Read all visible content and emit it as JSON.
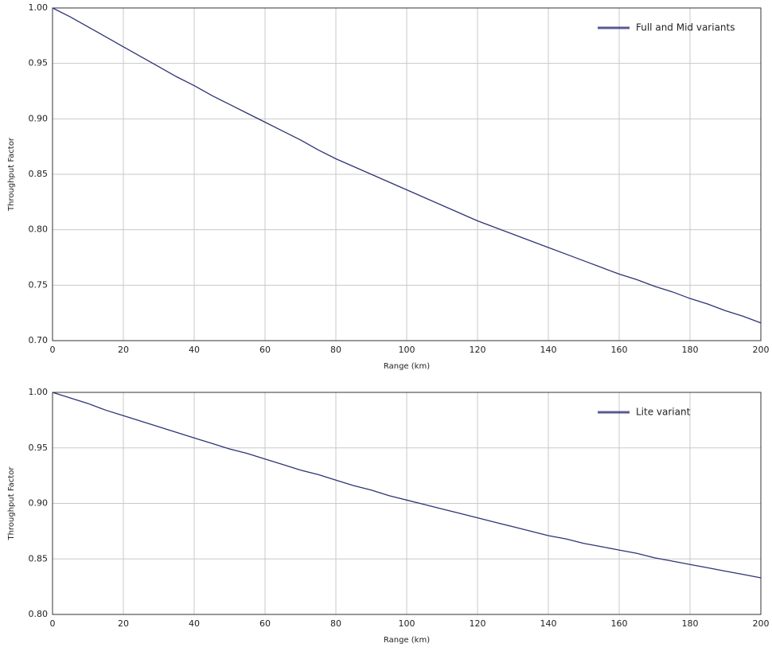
{
  "chart_data": [
    {
      "type": "line",
      "xlabel": "Range (km)",
      "ylabel": "Throughput Factor",
      "x": [
        0,
        5,
        10,
        15,
        20,
        25,
        30,
        35,
        40,
        45,
        50,
        55,
        60,
        65,
        70,
        75,
        80,
        85,
        90,
        95,
        100,
        105,
        110,
        115,
        120,
        125,
        130,
        135,
        140,
        145,
        150,
        155,
        160,
        165,
        170,
        175,
        180,
        185,
        190,
        195,
        200
      ],
      "series": [
        {
          "name": "Full and Mid variants",
          "color": "#2e3375",
          "values": [
            1.0,
            0.992,
            0.983,
            0.974,
            0.965,
            0.956,
            0.947,
            0.938,
            0.93,
            0.921,
            0.913,
            0.905,
            0.897,
            0.889,
            0.881,
            0.872,
            0.864,
            0.857,
            0.85,
            0.843,
            0.836,
            0.829,
            0.822,
            0.815,
            0.808,
            0.802,
            0.796,
            0.79,
            0.784,
            0.778,
            0.772,
            0.766,
            0.76,
            0.755,
            0.749,
            0.744,
            0.738,
            0.733,
            0.727,
            0.722,
            0.716
          ]
        }
      ],
      "xlim": [
        0,
        200
      ],
      "ylim": [
        0.7,
        1.0
      ],
      "xticks": [
        0,
        20,
        40,
        60,
        80,
        100,
        120,
        140,
        160,
        180,
        200
      ],
      "yticks": [
        {
          "value": 0.7,
          "label": "0.70"
        },
        {
          "value": 0.75,
          "label": "0.75"
        },
        {
          "value": 0.8,
          "label": "0.80"
        },
        {
          "value": 0.85,
          "label": "0.85"
        },
        {
          "value": 0.9,
          "label": "0.90"
        },
        {
          "value": 0.95,
          "label": "0.95"
        },
        {
          "value": 1.0,
          "label": "1.00"
        }
      ],
      "grid": true,
      "legend": "upper right"
    },
    {
      "type": "line",
      "xlabel": "Range (km)",
      "ylabel": "Throughput Factor",
      "x": [
        0,
        5,
        10,
        15,
        20,
        25,
        30,
        35,
        40,
        45,
        50,
        55,
        60,
        65,
        70,
        75,
        80,
        85,
        90,
        95,
        100,
        105,
        110,
        115,
        120,
        125,
        130,
        135,
        140,
        145,
        150,
        155,
        160,
        165,
        170,
        175,
        180,
        185,
        190,
        195,
        200
      ],
      "series": [
        {
          "name": "Lite variant",
          "color": "#2e3375",
          "values": [
            1.0,
            0.995,
            0.99,
            0.984,
            0.979,
            0.974,
            0.969,
            0.964,
            0.959,
            0.954,
            0.949,
            0.945,
            0.94,
            0.935,
            0.93,
            0.926,
            0.921,
            0.916,
            0.912,
            0.907,
            0.903,
            0.899,
            0.895,
            0.891,
            0.887,
            0.883,
            0.879,
            0.875,
            0.871,
            0.868,
            0.864,
            0.861,
            0.858,
            0.855,
            0.851,
            0.848,
            0.845,
            0.842,
            0.839,
            0.836,
            0.833
          ]
        }
      ],
      "xlim": [
        0,
        200
      ],
      "ylim": [
        0.8,
        1.0
      ],
      "xticks": [
        0,
        20,
        40,
        60,
        80,
        100,
        120,
        140,
        160,
        180,
        200
      ],
      "yticks": [
        {
          "value": 0.8,
          "label": "0.80"
        },
        {
          "value": 0.85,
          "label": "0.85"
        },
        {
          "value": 0.9,
          "label": "0.90"
        },
        {
          "value": 0.95,
          "label": "0.95"
        },
        {
          "value": 1.0,
          "label": "1.00"
        }
      ],
      "grid": true,
      "legend": "upper right"
    }
  ]
}
